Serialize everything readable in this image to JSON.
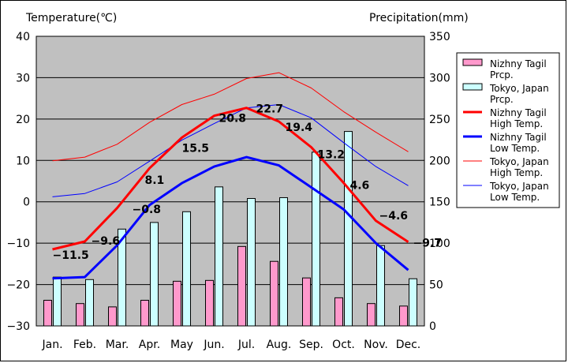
{
  "chart_data": {
    "type": "bar+line",
    "left_axis_title": "Temperature(℃)",
    "right_axis_title": "Precipitation(mm)",
    "left_ylim": [
      -30,
      40
    ],
    "left_ticks": [
      40,
      30,
      20,
      10,
      0,
      -10,
      -20,
      -30
    ],
    "right_ylim": [
      0,
      350
    ],
    "right_ticks": [
      350,
      300,
      250,
      200,
      150,
      100,
      50,
      0
    ],
    "categories": [
      "Jan.",
      "Feb.",
      "Mar.",
      "Apr.",
      "May",
      "Jun.",
      "Jul.",
      "Aug.",
      "Sep.",
      "Oct.",
      "Nov.",
      "Dec."
    ],
    "grid": true,
    "legend_position": "right",
    "bars": [
      {
        "name": "Nizhny Tagil\nPrcp.",
        "color": "#ff99cc",
        "values": [
          31,
          27,
          23,
          31,
          54,
          55,
          96,
          78,
          58,
          34,
          27,
          24
        ]
      },
      {
        "name": "Tokyo, Japan\nPrcp.",
        "color": "#ccffff",
        "values": [
          59,
          56,
          117,
          125,
          138,
          168,
          154,
          155,
          210,
          235,
          97,
          57
        ]
      }
    ],
    "lines": [
      {
        "name": "Nizhny Tagil\nHigh Temp.",
        "color": "#ff0000",
        "width": 3,
        "values": [
          -11.5,
          -9.6,
          -1.5,
          8.1,
          15.5,
          20.8,
          22.7,
          19.4,
          13.2,
          4.6,
          -4.6,
          -9.7
        ]
      },
      {
        "name": "Nizhny Tagil\nLow Temp.",
        "color": "#0000ff",
        "width": 3,
        "values": [
          -18.5,
          -18.2,
          -10.5,
          -0.8,
          4.5,
          8.5,
          10.8,
          8.8,
          3.5,
          -1.8,
          -10,
          -16.5
        ]
      },
      {
        "name": "Tokyo, Japan\nHigh Temp.",
        "color": "#ff0000",
        "width": 1,
        "values": [
          9.9,
          10.8,
          13.9,
          19.2,
          23.5,
          26.0,
          29.8,
          31.2,
          27.5,
          21.8,
          16.8,
          12.1
        ]
      },
      {
        "name": "Tokyo, Japan\nLow Temp.",
        "color": "#0000ff",
        "width": 1,
        "values": [
          1.2,
          2.0,
          4.8,
          9.8,
          14.9,
          18.9,
          22.7,
          23.5,
          20.3,
          14.3,
          8.5,
          3.9
        ]
      }
    ],
    "data_labels": [
      {
        "text": "-11.5",
        "x": "Jan.",
        "y": -11.5
      },
      {
        "text": "-9.6",
        "x": "Feb.",
        "y": -9.6
      },
      {
        "text": "-0.8",
        "x": "Apr.",
        "y": -0.8
      },
      {
        "text": "8.1",
        "x": "Apr.",
        "y": 8.1
      },
      {
        "text": "15.5",
        "x": "May",
        "y": 15.5
      },
      {
        "text": "20.8",
        "x": "Jun.",
        "y": 20.8
      },
      {
        "text": "22.7",
        "x": "Jul.",
        "y": 22.7
      },
      {
        "text": "19.4",
        "x": "Aug.",
        "y": 19.4
      },
      {
        "text": "13.2",
        "x": "Sep.",
        "y": 13.2
      },
      {
        "text": "4.6",
        "x": "Oct.",
        "y": 4.6
      },
      {
        "text": "-4.6",
        "x": "Nov.",
        "y": -4.6
      },
      {
        "text": "-9.7",
        "x": "Dec.",
        "y": -9.7
      }
    ]
  }
}
